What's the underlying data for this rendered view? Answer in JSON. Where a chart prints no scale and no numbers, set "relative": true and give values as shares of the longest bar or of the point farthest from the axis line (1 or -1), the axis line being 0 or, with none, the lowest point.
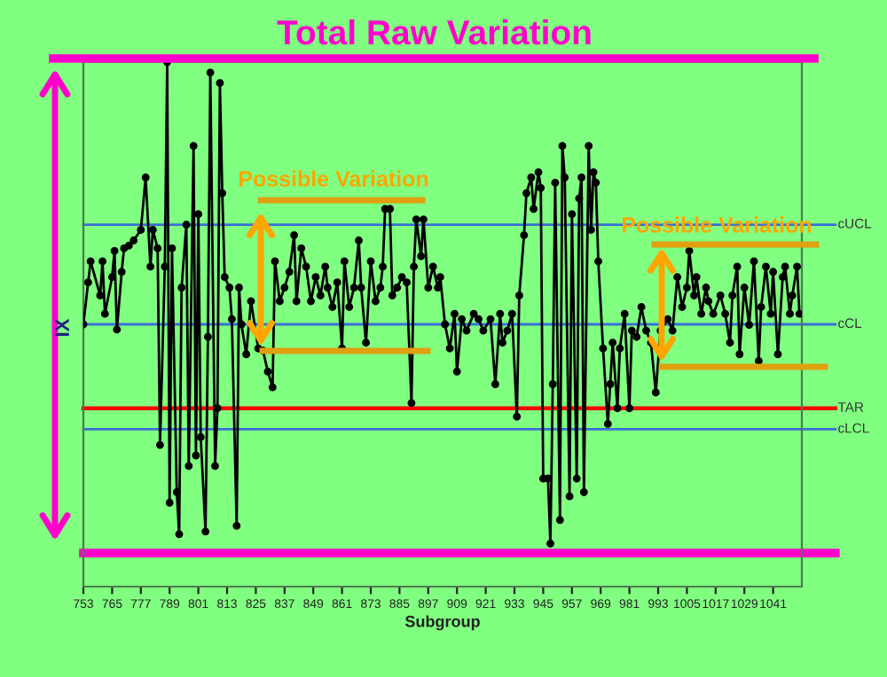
{
  "chart_data": {
    "type": "line",
    "title": "Total Raw Variation",
    "xlabel": "Subgroup",
    "ylabel": "IX",
    "relative": true,
    "marker": "circle",
    "line_style": "solid",
    "grid": false,
    "legend": false,
    "xlim": [
      753,
      1053
    ],
    "xticks": [
      753,
      765,
      777,
      789,
      801,
      813,
      825,
      837,
      849,
      861,
      873,
      885,
      897,
      909,
      921,
      933,
      945,
      957,
      969,
      981,
      993,
      1005,
      1017,
      1029,
      1041
    ],
    "series": [
      {
        "color": "#000000",
        "x": [
          753,
          755,
          756,
          760,
          761,
          762,
          765,
          766,
          767,
          769,
          770,
          772,
          774,
          777,
          779,
          781,
          782,
          784,
          785,
          787,
          788,
          789,
          790,
          792,
          793,
          794,
          796,
          797,
          799,
          800,
          801,
          802,
          804,
          805,
          806,
          808,
          809,
          810,
          811,
          812,
          814,
          815,
          817,
          818,
          819,
          821,
          823,
          826,
          828,
          830,
          832,
          833,
          835,
          837,
          839,
          841,
          842,
          844,
          846,
          848,
          850,
          852,
          854,
          855,
          857,
          859,
          861,
          862,
          864,
          866,
          868,
          869,
          871,
          873,
          875,
          877,
          878,
          879,
          881,
          882,
          884,
          886,
          888,
          890,
          891,
          892,
          894,
          895,
          897,
          899,
          901,
          902,
          904,
          906,
          908,
          909,
          911,
          913,
          916,
          918,
          920,
          923,
          925,
          927,
          928,
          930,
          932,
          934,
          935,
          937,
          938,
          940,
          941,
          943,
          944,
          945,
          947,
          948,
          949,
          950,
          952,
          953,
          954,
          956,
          957,
          959,
          960,
          961,
          962,
          964,
          965,
          966,
          967,
          968,
          970,
          972,
          973,
          974,
          976,
          977,
          979,
          981,
          982,
          984,
          986,
          988,
          990,
          992,
          994,
          997,
          999,
          1001,
          1003,
          1005,
          1006,
          1008,
          1009,
          1011,
          1013,
          1014,
          1016,
          1019,
          1021,
          1023,
          1024,
          1026,
          1027,
          1029,
          1031,
          1033,
          1035,
          1036,
          1038,
          1040,
          1041,
          1043,
          1045,
          1046,
          1048,
          1049,
          1051,
          1052
        ],
        "values": [
          0.5,
          0.58,
          0.62,
          0.555,
          0.62,
          0.52,
          0.59,
          0.64,
          0.49,
          0.6,
          0.645,
          0.65,
          0.66,
          0.68,
          0.78,
          0.61,
          0.68,
          0.645,
          0.27,
          0.61,
          1.0,
          0.16,
          0.645,
          0.18,
          0.1,
          0.57,
          0.69,
          0.23,
          0.84,
          0.25,
          0.71,
          0.285,
          0.105,
          0.476,
          0.98,
          0.23,
          0.34,
          0.96,
          0.75,
          0.59,
          0.57,
          0.51,
          0.116,
          0.57,
          0.5,
          0.443,
          0.544,
          0.454,
          0.45,
          0.41,
          0.38,
          0.62,
          0.544,
          0.57,
          0.6,
          0.67,
          0.544,
          0.645,
          0.61,
          0.544,
          0.59,
          0.555,
          0.61,
          0.57,
          0.533,
          0.58,
          0.454,
          0.62,
          0.533,
          0.57,
          0.66,
          0.57,
          0.465,
          0.62,
          0.544,
          0.57,
          0.61,
          0.72,
          0.72,
          0.555,
          0.57,
          0.59,
          0.58,
          0.35,
          0.61,
          0.7,
          0.63,
          0.7,
          0.57,
          0.61,
          0.57,
          0.59,
          0.5,
          0.454,
          0.52,
          0.41,
          0.51,
          0.488,
          0.52,
          0.51,
          0.488,
          0.51,
          0.386,
          0.52,
          0.465,
          0.488,
          0.52,
          0.324,
          0.555,
          0.67,
          0.75,
          0.78,
          0.72,
          0.79,
          0.76,
          0.206,
          0.206,
          0.082,
          0.386,
          0.77,
          0.127,
          0.84,
          0.78,
          0.172,
          0.71,
          0.206,
          0.74,
          0.78,
          0.18,
          0.84,
          0.68,
          0.79,
          0.77,
          0.62,
          0.454,
          0.31,
          0.386,
          0.465,
          0.34,
          0.454,
          0.52,
          0.34,
          0.488,
          0.476,
          0.533,
          0.488,
          0.465,
          0.37,
          0.488,
          0.51,
          0.488,
          0.59,
          0.533,
          0.57,
          0.64,
          0.555,
          0.59,
          0.52,
          0.57,
          0.544,
          0.52,
          0.555,
          0.52,
          0.465,
          0.555,
          0.61,
          0.443,
          0.57,
          0.499,
          0.62,
          0.43,
          0.533,
          0.61,
          0.52,
          0.6,
          0.443,
          0.59,
          0.61,
          0.52,
          0.555,
          0.61,
          0.52
        ]
      }
    ],
    "ref_lines": [
      {
        "axis": "y",
        "value": 0.69,
        "label": "cUCL",
        "color": "#3a6fd8"
      },
      {
        "axis": "y",
        "value": 0.5,
        "label": "cCL",
        "color": "#3a6fd8"
      },
      {
        "axis": "y",
        "value": 0.34,
        "label": "TAR",
        "color": "#ff0000"
      },
      {
        "axis": "y",
        "value": 0.3,
        "label": "cLCL",
        "color": "#3a6fd8"
      },
      {
        "axis": "y",
        "value": 0.064,
        "color": "#ff00cc"
      }
    ],
    "annotations": [
      "Possible Variation",
      "Possible Variation"
    ]
  }
}
